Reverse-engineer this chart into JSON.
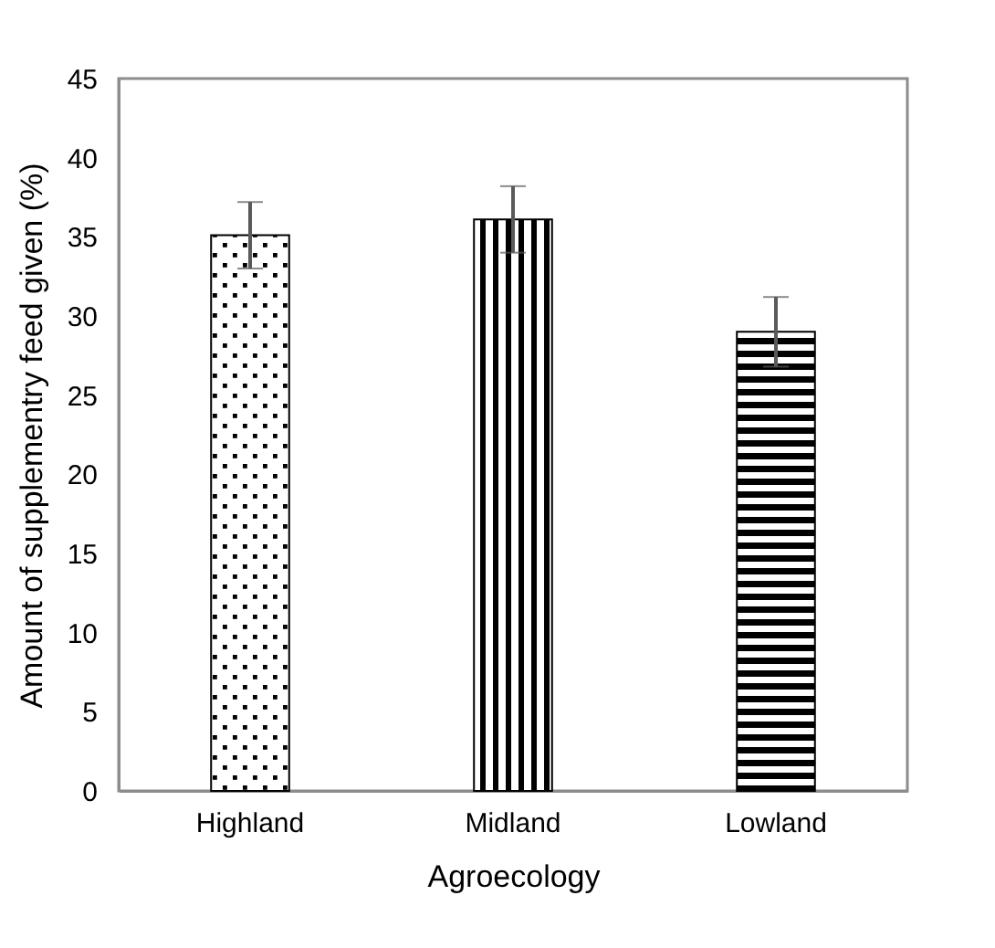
{
  "chart_data": {
    "type": "bar",
    "xlabel": "Agroecology",
    "ylabel": "Amount of supplementry feed given (%)",
    "categories": [
      "Highland",
      "Midland",
      "Lowland"
    ],
    "values": [
      35.1,
      36.1,
      29.0
    ],
    "errors": [
      2.1,
      2.1,
      2.2
    ],
    "color": "#000000",
    "ylim": [
      0,
      45
    ],
    "yticks": [
      0,
      5,
      10,
      15,
      20,
      25,
      30,
      35,
      40,
      45
    ],
    "grid": false
  }
}
